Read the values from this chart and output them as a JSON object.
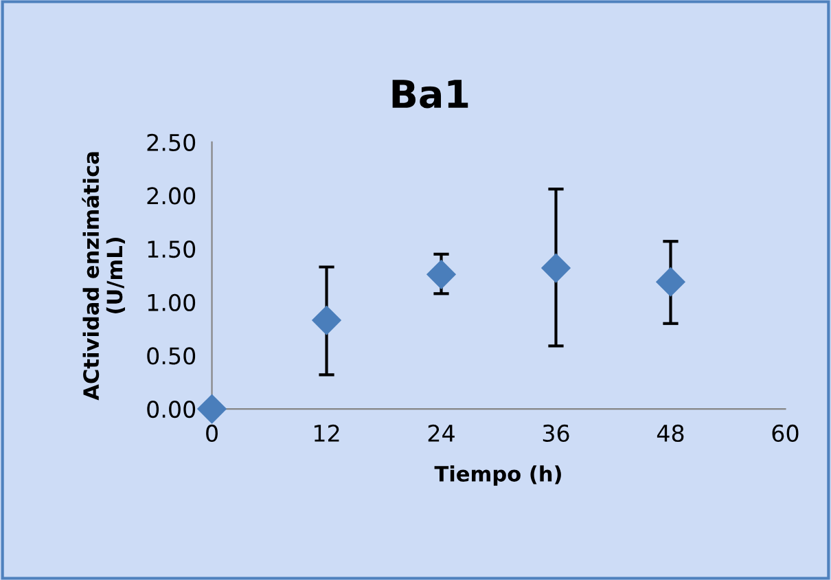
{
  "chart_data": {
    "type": "scatter",
    "title": "Ba1",
    "xlabel": "Tiempo (h)",
    "ylabel": "ACtividad enzimática\n(U/mL)",
    "x": [
      0,
      12,
      24,
      36,
      48
    ],
    "values": [
      0,
      0.83,
      1.26,
      1.32,
      1.19
    ],
    "errors": [
      null,
      [
        0.32,
        1.33
      ],
      [
        1.08,
        1.45
      ],
      [
        0.59,
        2.06
      ],
      [
        0.8,
        1.57
      ]
    ],
    "color": "#4a7ebb",
    "xlim": [
      0,
      60
    ],
    "xticks": [
      0,
      12,
      24,
      36,
      48,
      60
    ],
    "ylim": [
      0,
      2.5
    ],
    "yticks": [
      {
        "value": 0,
        "label": "0.00"
      },
      {
        "value": 0.5,
        "label": "0.50"
      },
      {
        "value": 1,
        "label": "1.00"
      },
      {
        "value": 1.5,
        "label": "1.50"
      },
      {
        "value": 2,
        "label": "2.00"
      },
      {
        "value": 2.5,
        "label": "2.50"
      }
    ],
    "marker": "diamond",
    "grid": false,
    "legend": false
  }
}
